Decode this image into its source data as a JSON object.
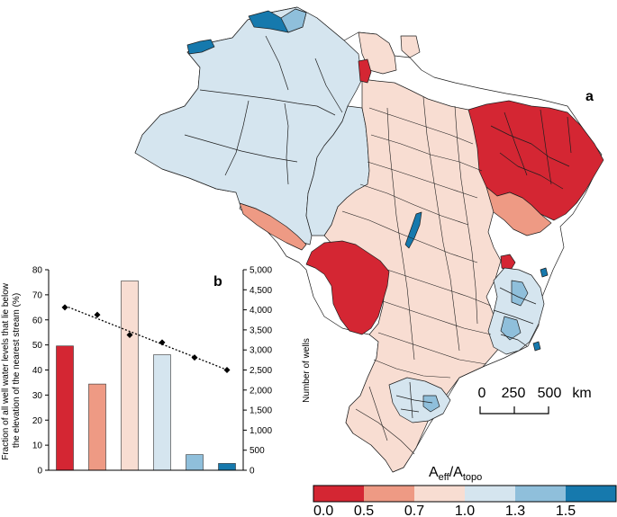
{
  "panel_a": {
    "label": "a",
    "scale_bar": {
      "ticks": [
        "0",
        "250",
        "500"
      ],
      "unit": "km"
    },
    "legend": {
      "title_main": "A",
      "title_sub1": "eff",
      "title_sep": "/A",
      "title_sub2": "topo",
      "bins": [
        {
          "range": "0.0–0.5",
          "color": "#d42633"
        },
        {
          "range": "0.5–0.7",
          "color": "#ee9a84"
        },
        {
          "range": "0.7–1.0",
          "color": "#f8ddd2"
        },
        {
          "range": "1.0–1.3",
          "color": "#d5e5ef"
        },
        {
          "range": "1.3–1.5",
          "color": "#8fbfdb"
        },
        {
          "range": ">1.5",
          "color": "#1679ad"
        }
      ],
      "tick_labels": [
        "0.0",
        "0.5",
        "0.7",
        "1.0",
        "1.3",
        "1.5"
      ]
    }
  },
  "chart_data": {
    "type": "bar",
    "panel_label": "b",
    "categories": [
      "0.0–0.5",
      "0.5–0.7",
      "0.7–1.0",
      "1.0–1.3",
      "1.3–1.5",
      ">1.5"
    ],
    "colors": [
      "#d42633",
      "#ee9a84",
      "#f8ddd2",
      "#d5e5ef",
      "#8fbfdb",
      "#1679ad"
    ],
    "series": [
      {
        "values": [
          3100,
          2150,
          4720,
          2880,
          390,
          170
        ],
        "axis": "right",
        "type": "bar"
      },
      {
        "values": [
          65,
          62,
          54,
          51,
          45,
          40
        ],
        "axis": "left",
        "type": "line"
      }
    ],
    "ylabel_left": "Fraction of all well water levels that lie below the elevation of the nearest stream (%)",
    "ylabel_left_lines": [
      "Fraction of all well water levels that lie below",
      "the elevation of the nearest stream (%)"
    ],
    "ylim_left": [
      0,
      80
    ],
    "yticks_left": [
      "0",
      "10",
      "20",
      "30",
      "40",
      "50",
      "60",
      "70",
      "80"
    ],
    "ylabel_right": "Number of wells",
    "ylim_right": [
      0,
      5000
    ],
    "yticks_right": [
      "0",
      "500",
      "1,000",
      "1,500",
      "2,000",
      "2,500",
      "3,000",
      "3,500",
      "4,000",
      "4,500",
      "5,000"
    ],
    "grid": false
  }
}
